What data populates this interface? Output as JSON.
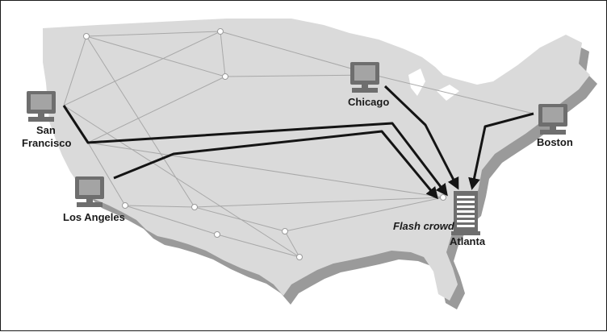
{
  "nodes": {
    "san_francisco": {
      "line1": "San",
      "line2": "Francisco"
    },
    "los_angeles": {
      "label": "Los Angeles"
    },
    "chicago": {
      "label": "Chicago"
    },
    "boston": {
      "label": "Boston"
    },
    "atlanta": {
      "label": "Atlanta"
    }
  },
  "annotation": {
    "flash_crowd": "Flash crowd"
  },
  "colors": {
    "map_fill": "#dadada",
    "map_shadow": "#9a9a9a",
    "route": "#141414",
    "mesh": "#a8a8a8",
    "icon": "#6e6e6e"
  }
}
